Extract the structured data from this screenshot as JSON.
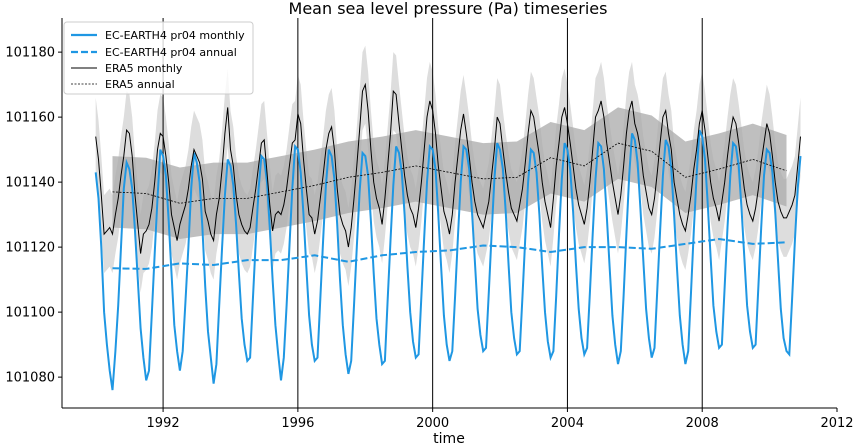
{
  "chart_data": {
    "type": "line",
    "title": "Mean sea level pressure (Pa) timeseries",
    "xlabel": "time",
    "ylabel": "",
    "xlim": [
      1989.0,
      2012.0
    ],
    "ylim": [
      101070.5,
      101190.5
    ],
    "xticks": [
      1992,
      1996,
      2000,
      2004,
      2008,
      2012
    ],
    "yticks": [
      101080,
      101100,
      101120,
      101140,
      101160,
      101180
    ],
    "vlines": [
      1992,
      1996,
      2000,
      2004,
      2008
    ],
    "legend_position": "top-left",
    "grid": false,
    "colors": {
      "ec": "#1f97e3",
      "era5": "#000000",
      "band_monthly": "#dddddd",
      "band_annual": "#a9a9a9"
    },
    "monthly_start": 1990,
    "ec_monthly": {
      "name": "EC-EARTH4 pr04 monthly",
      "values": [
        [
          101143,
          101135,
          101120,
          101100,
          101090,
          101082,
          101076,
          101088,
          101102,
          101120,
          101138,
          101146
        ],
        [
          101144,
          101138,
          101125,
          101110,
          101095,
          101086,
          101079,
          101082,
          101100,
          101118,
          101135,
          101150
        ],
        [
          101148,
          101142,
          101128,
          101112,
          101096,
          101088,
          101082,
          101088,
          101104,
          101120,
          101138,
          101149
        ],
        [
          101146,
          101140,
          101126,
          101108,
          101094,
          101086,
          101078,
          101084,
          101102,
          101120,
          101136,
          101147
        ],
        [
          101145,
          101139,
          101127,
          101112,
          101098,
          101090,
          101085,
          101086,
          101104,
          101122,
          101138,
          101148
        ],
        [
          101147,
          101140,
          101126,
          101110,
          101096,
          101087,
          101079,
          101086,
          101102,
          101120,
          101138,
          101151
        ],
        [
          101150,
          101143,
          101130,
          101114,
          101099,
          101090,
          101085,
          101086,
          101104,
          101122,
          101139,
          101150
        ],
        [
          101148,
          101141,
          101127,
          101110,
          101096,
          101087,
          101081,
          101085,
          101102,
          101120,
          101137,
          101149
        ],
        [
          101148,
          101142,
          101128,
          101112,
          101098,
          101090,
          101084,
          101085,
          101104,
          101122,
          101139,
          101151
        ],
        [
          101149,
          101143,
          101130,
          101114,
          101100,
          101091,
          101086,
          101087,
          101105,
          101123,
          101140,
          101151
        ],
        [
          101150,
          101144,
          101130,
          101114,
          101099,
          101090,
          101085,
          101088,
          101105,
          101123,
          101140,
          101151
        ],
        [
          101150,
          101144,
          101131,
          101116,
          101101,
          101093,
          101088,
          101089,
          101106,
          101124,
          101141,
          101152
        ],
        [
          101150,
          101144,
          101131,
          101115,
          101100,
          101092,
          101087,
          101088,
          101105,
          101123,
          101140,
          101150
        ],
        [
          101149,
          101143,
          101130,
          101114,
          101100,
          101091,
          101086,
          101088,
          101105,
          101124,
          101141,
          101152
        ],
        [
          101150,
          101144,
          101131,
          101115,
          101101,
          101092,
          101087,
          101089,
          101106,
          101124,
          101141,
          101152
        ],
        [
          101151,
          101144,
          101130,
          101114,
          101099,
          101090,
          101084,
          101088,
          101105,
          101124,
          101142,
          101155
        ],
        [
          101153,
          101146,
          101132,
          101116,
          101101,
          101092,
          101086,
          101089,
          101107,
          101125,
          101142,
          101153
        ],
        [
          101151,
          101144,
          101130,
          101114,
          101099,
          101090,
          101084,
          101088,
          101106,
          101125,
          101142,
          101156
        ],
        [
          101154,
          101147,
          101133,
          101117,
          101102,
          101094,
          101089,
          101090,
          101108,
          101126,
          101142,
          101152
        ],
        [
          101151,
          101145,
          101132,
          101117,
          101102,
          101094,
          101089,
          101090,
          101108,
          101126,
          101142,
          101150
        ],
        [
          101149,
          101143,
          101131,
          101116,
          101101,
          101092,
          101088,
          101087,
          101104,
          101122,
          101138,
          101148
        ]
      ]
    },
    "ec_annual": {
      "name": "EC-EARTH4 pr04 annual",
      "values": [
        101113.5,
        101113.3,
        101115,
        101114.5,
        101116,
        101116,
        101117.5,
        101115.5,
        101117.5,
        101118.5,
        101119,
        101120.5,
        101120,
        101118.5,
        101120,
        101120,
        101119.5,
        101121,
        101122.5,
        101121,
        101121.5
      ]
    },
    "era5_monthly": {
      "name": "ERA5 monthly",
      "spread": 12,
      "values": [
        [
          101154,
          101147,
          101136,
          101124,
          101125,
          101126,
          101124,
          101130,
          101135,
          101142,
          101148,
          101156
        ],
        [
          101155,
          101148,
          101136,
          101127,
          101118,
          101124,
          101125,
          101127,
          101132,
          101140,
          101150,
          101155
        ],
        [
          101154,
          101148,
          101140,
          101130,
          101126,
          101122,
          101127,
          101130,
          101133,
          101138,
          101145,
          101150
        ],
        [
          101148,
          101146,
          101141,
          101131,
          101128,
          101124,
          101122,
          101130,
          101135,
          101144,
          101155,
          101163
        ],
        [
          101150,
          101145,
          101136,
          101130,
          101127,
          101125,
          101124,
          101126,
          101132,
          101138,
          101145,
          101152
        ],
        [
          101153,
          101143,
          101133,
          101125,
          101130,
          101131,
          101130,
          101133,
          101138,
          101145,
          101152,
          101153
        ],
        [
          101161,
          101158,
          101147,
          101138,
          101130,
          101129,
          101124,
          101128,
          101135,
          101142,
          101150,
          101155
        ],
        [
          101157,
          101150,
          101138,
          101130,
          101127,
          101125,
          101120,
          101126,
          101135,
          101145,
          101156,
          101168
        ],
        [
          101170,
          101162,
          101150,
          101140,
          101135,
          101132,
          101127,
          101135,
          101145,
          101155,
          101168,
          101167
        ],
        [
          101158,
          101150,
          101142,
          101136,
          101132,
          101130,
          101126,
          101132,
          101140,
          101150,
          101160,
          101165
        ],
        [
          101162,
          101155,
          101145,
          101138,
          101131,
          101128,
          101124,
          101130,
          101140,
          101148,
          101156,
          101161
        ],
        [
          101155,
          101148,
          101140,
          101134,
          101130,
          101128,
          101126,
          101130,
          101134,
          101142,
          101150,
          101160
        ],
        [
          101158,
          101150,
          101143,
          101137,
          101132,
          101130,
          101128,
          101133,
          101138,
          101146,
          101155,
          101162
        ],
        [
          101160,
          101154,
          101148,
          101140,
          101134,
          101130,
          101126,
          101135,
          101145,
          101152,
          101160,
          101163
        ],
        [
          101158,
          101152,
          101145,
          101138,
          101133,
          101130,
          101127,
          101132,
          101140,
          101150,
          101160,
          101162
        ],
        [
          101165,
          101160,
          101152,
          101146,
          101140,
          101135,
          101130,
          101136,
          101145,
          101155,
          101162,
          101165
        ],
        [
          101158,
          101155,
          101150,
          101142,
          101137,
          101132,
          101130,
          101135,
          101143,
          101152,
          101160,
          101162
        ],
        [
          101155,
          101150,
          101140,
          101135,
          101130,
          101127,
          101125,
          101130,
          101136,
          101144,
          101150,
          101158
        ],
        [
          101162,
          101156,
          101148,
          101140,
          101135,
          101132,
          101128,
          101134,
          101140,
          101148,
          101155,
          101160
        ],
        [
          101158,
          101152,
          101145,
          101138,
          101133,
          101130,
          101128,
          101132,
          101138,
          101146,
          101152,
          101158
        ],
        [
          101155,
          101148,
          101140,
          101134,
          101131,
          101129,
          101129,
          101131,
          101133,
          101136,
          101145,
          101154
        ]
      ]
    },
    "era5_annual": {
      "name": "ERA5 annual",
      "spread": 11,
      "values": [
        101137,
        101136.5,
        101133.5,
        101135,
        101135,
        101137,
        101139,
        101141.5,
        101143,
        101145,
        101143,
        101141,
        101141.5,
        101147.5,
        101145,
        101152,
        101149.5,
        101141.5,
        101144,
        101147,
        101143.5
      ]
    }
  }
}
